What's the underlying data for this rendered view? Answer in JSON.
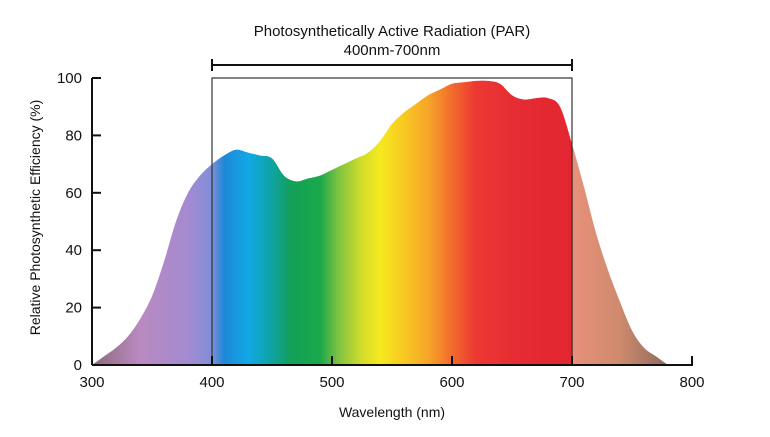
{
  "chart_data": {
    "type": "area",
    "title": "",
    "xlabel": "Wavelength (nm)",
    "ylabel": "Relative Photosynthetic Efficiency (%)",
    "xlim": [
      300,
      800
    ],
    "ylim": [
      0,
      100
    ],
    "x_ticks": [
      "300",
      "400",
      "500",
      "600",
      "700",
      "800"
    ],
    "y_ticks": [
      "0",
      "20",
      "40",
      "60",
      "80",
      "100"
    ],
    "grid": false,
    "annotation": {
      "label": "Photosynthetically Active Radiation (PAR)",
      "range_label": "400nm-700nm",
      "range": [
        400,
        700
      ]
    },
    "series": [
      {
        "x": [
          300,
          310,
          320,
          330,
          340,
          350,
          360,
          370,
          380,
          390,
          400,
          410,
          420,
          430,
          440,
          450,
          460,
          470,
          480,
          490,
          500,
          510,
          520,
          530,
          540,
          550,
          560,
          570,
          580,
          590,
          600,
          610,
          620,
          630,
          640,
          650,
          660,
          670,
          680,
          690,
          700,
          710,
          720,
          730,
          740,
          750,
          760,
          770,
          780
        ],
        "y": [
          0,
          3,
          6,
          10,
          16,
          24,
          36,
          50,
          60,
          66,
          70,
          73,
          75,
          74,
          73,
          72,
          66,
          64,
          65,
          66,
          68,
          70,
          72,
          74,
          78,
          84,
          88,
          91,
          94,
          96,
          98,
          98.5,
          99,
          99,
          98,
          94,
          92.5,
          93,
          93,
          90,
          77,
          62,
          46,
          33,
          22,
          12,
          6,
          3,
          0
        ]
      }
    ],
    "gradient_stops": [
      {
        "x": 300,
        "color": "#8a6a7a"
      },
      {
        "x": 340,
        "color": "#b98ac0"
      },
      {
        "x": 380,
        "color": "#a48ad0"
      },
      {
        "x": 400,
        "color": "#7f8fd8"
      },
      {
        "x": 410,
        "color": "#1e88d8"
      },
      {
        "x": 430,
        "color": "#12a8e6"
      },
      {
        "x": 450,
        "color": "#0fa3a2"
      },
      {
        "x": 465,
        "color": "#13a05a"
      },
      {
        "x": 490,
        "color": "#1aa84a"
      },
      {
        "x": 505,
        "color": "#7cc242"
      },
      {
        "x": 525,
        "color": "#d4dc2a"
      },
      {
        "x": 540,
        "color": "#f4ea1e"
      },
      {
        "x": 560,
        "color": "#f8c822"
      },
      {
        "x": 580,
        "color": "#f6a628"
      },
      {
        "x": 600,
        "color": "#f26b2d"
      },
      {
        "x": 620,
        "color": "#ec3832"
      },
      {
        "x": 660,
        "color": "#e52a34"
      },
      {
        "x": 700,
        "color": "#e32630"
      },
      {
        "x": 701,
        "color": "#e8907a"
      },
      {
        "x": 740,
        "color": "#cf8a6e"
      },
      {
        "x": 780,
        "color": "#8c6a5e"
      }
    ]
  }
}
